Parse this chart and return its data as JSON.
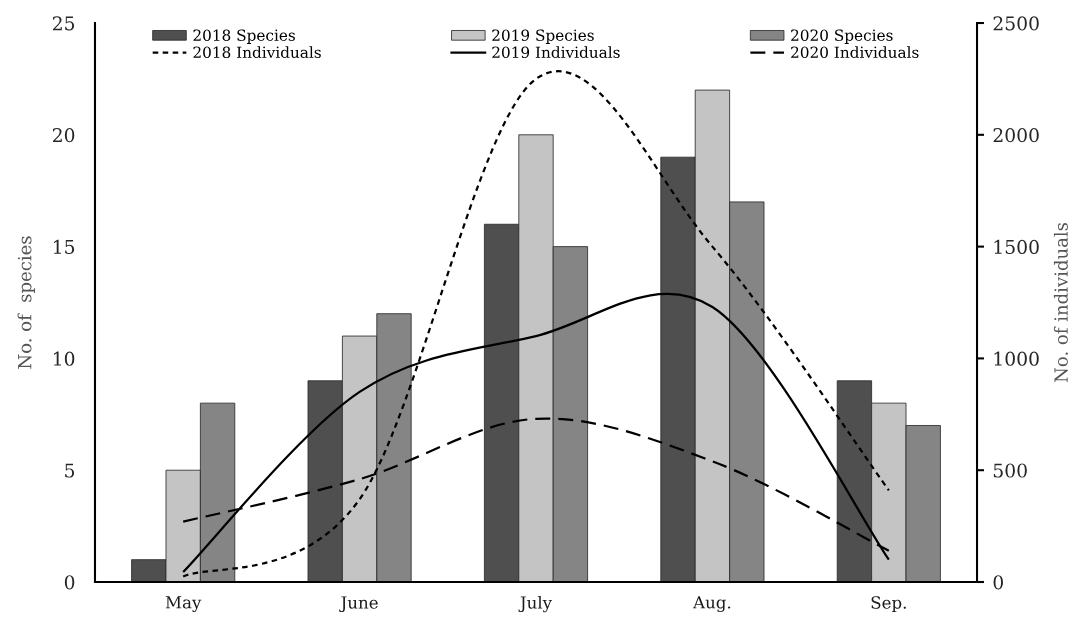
{
  "chart_data": {
    "type": "bar",
    "categories": [
      "May",
      "June",
      "July",
      "Aug.",
      "Sep."
    ],
    "ylabel": "No. of  species",
    "y2label": "No. of individuals",
    "ylim": [
      0,
      25
    ],
    "yticks": [
      0,
      5,
      10,
      15,
      20,
      25
    ],
    "y2lim": [
      0,
      2500
    ],
    "y2ticks": [
      0,
      500,
      1000,
      1500,
      2000,
      2500
    ],
    "legend": "top",
    "series": [
      {
        "name": "2018 Species",
        "color": "#4f4f4f",
        "values": [
          1,
          9,
          16,
          19,
          9
        ]
      },
      {
        "name": "2019 Species",
        "color": "#c4c4c4",
        "values": [
          5,
          11,
          20,
          22,
          8
        ]
      },
      {
        "name": "2020 Species",
        "color": "#858585",
        "values": [
          8,
          12,
          15,
          17,
          7
        ]
      },
      {
        "name": "2018 Individuals",
        "type": "line",
        "axis": "y2",
        "color": "#000000",
        "line_style": "dashed",
        "values": [
          25,
          370,
          2250,
          1500,
          410
        ]
      },
      {
        "name": "2019 Individuals",
        "type": "line",
        "axis": "y2",
        "color": "#000000",
        "line_style": "solid",
        "values": [
          45,
          850,
          1100,
          1230,
          100
        ]
      },
      {
        "name": "2020 Individuals",
        "type": "line",
        "axis": "y2",
        "color": "#000000",
        "line_style": "dashed",
        "values": [
          270,
          460,
          730,
          540,
          140
        ]
      }
    ]
  }
}
